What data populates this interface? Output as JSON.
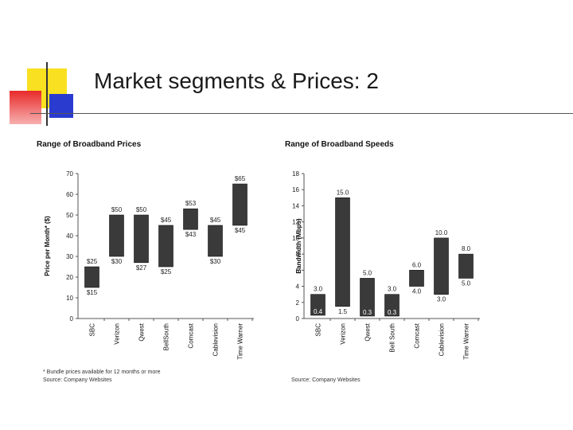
{
  "slide": {
    "title": "Market segments & Prices: 2",
    "colors": {
      "accent_yellow": "#f9e020",
      "accent_red": "#e82a2a",
      "accent_blue": "#2a3bd0",
      "bar_fill": "#3a3a3a",
      "rule": "#555555"
    }
  },
  "chart_data": [
    {
      "type": "bar",
      "subtype": "floating-range",
      "title": "Range of Broadband Prices",
      "xlabel": "",
      "ylabel": "Price per Month* ($)",
      "ylim": [
        0,
        70
      ],
      "yticks": [
        "0",
        "10",
        "20",
        "30",
        "40",
        "50",
        "60",
        "70"
      ],
      "grid": false,
      "categories": [
        "SBC",
        "Verizon",
        "Qwest",
        "BellSouth",
        "Comcast",
        "Cablevision",
        "Time Warner"
      ],
      "low": [
        15,
        30,
        27,
        25,
        43,
        30,
        45
      ],
      "high": [
        25,
        50,
        50,
        45,
        53,
        45,
        65
      ],
      "low_labels": [
        "$15",
        "$30",
        "$27",
        "$25",
        "$43",
        "$30",
        "$45"
      ],
      "high_labels": [
        "$25",
        "$50",
        "$50",
        "$45",
        "$53",
        "$45",
        "$65"
      ],
      "footnotes": [
        "* Bundle prices available for 12 months or more",
        "Source: Company Websites"
      ]
    },
    {
      "type": "bar",
      "subtype": "floating-range",
      "title": "Range of Broadband Speeds",
      "xlabel": "",
      "ylabel": "Bandwidth (Mbps)",
      "ylim": [
        0,
        18
      ],
      "yticks": [
        "0",
        "2",
        "4",
        "6",
        "8",
        "10",
        "12",
        "14",
        "16",
        "18"
      ],
      "grid": false,
      "categories": [
        "SBC",
        "Verizon",
        "Qwest",
        "Bell South",
        "Comcast",
        "Cablevision",
        "Time Warner"
      ],
      "low": [
        0.4,
        1.5,
        0.3,
        0.3,
        4.0,
        3.0,
        5.0
      ],
      "high": [
        3.0,
        15.0,
        5.0,
        3.0,
        6.0,
        10.0,
        8.0
      ],
      "low_labels": [
        "0.4",
        "1.5",
        "0.3",
        "0.3",
        "4.0",
        "3.0",
        "5.0"
      ],
      "high_labels": [
        "3.0",
        "15.0",
        "5.0",
        "3.0",
        "6.0",
        "10.0",
        "8.0"
      ],
      "footnotes": [
        "Source: Company Websites"
      ]
    }
  ]
}
